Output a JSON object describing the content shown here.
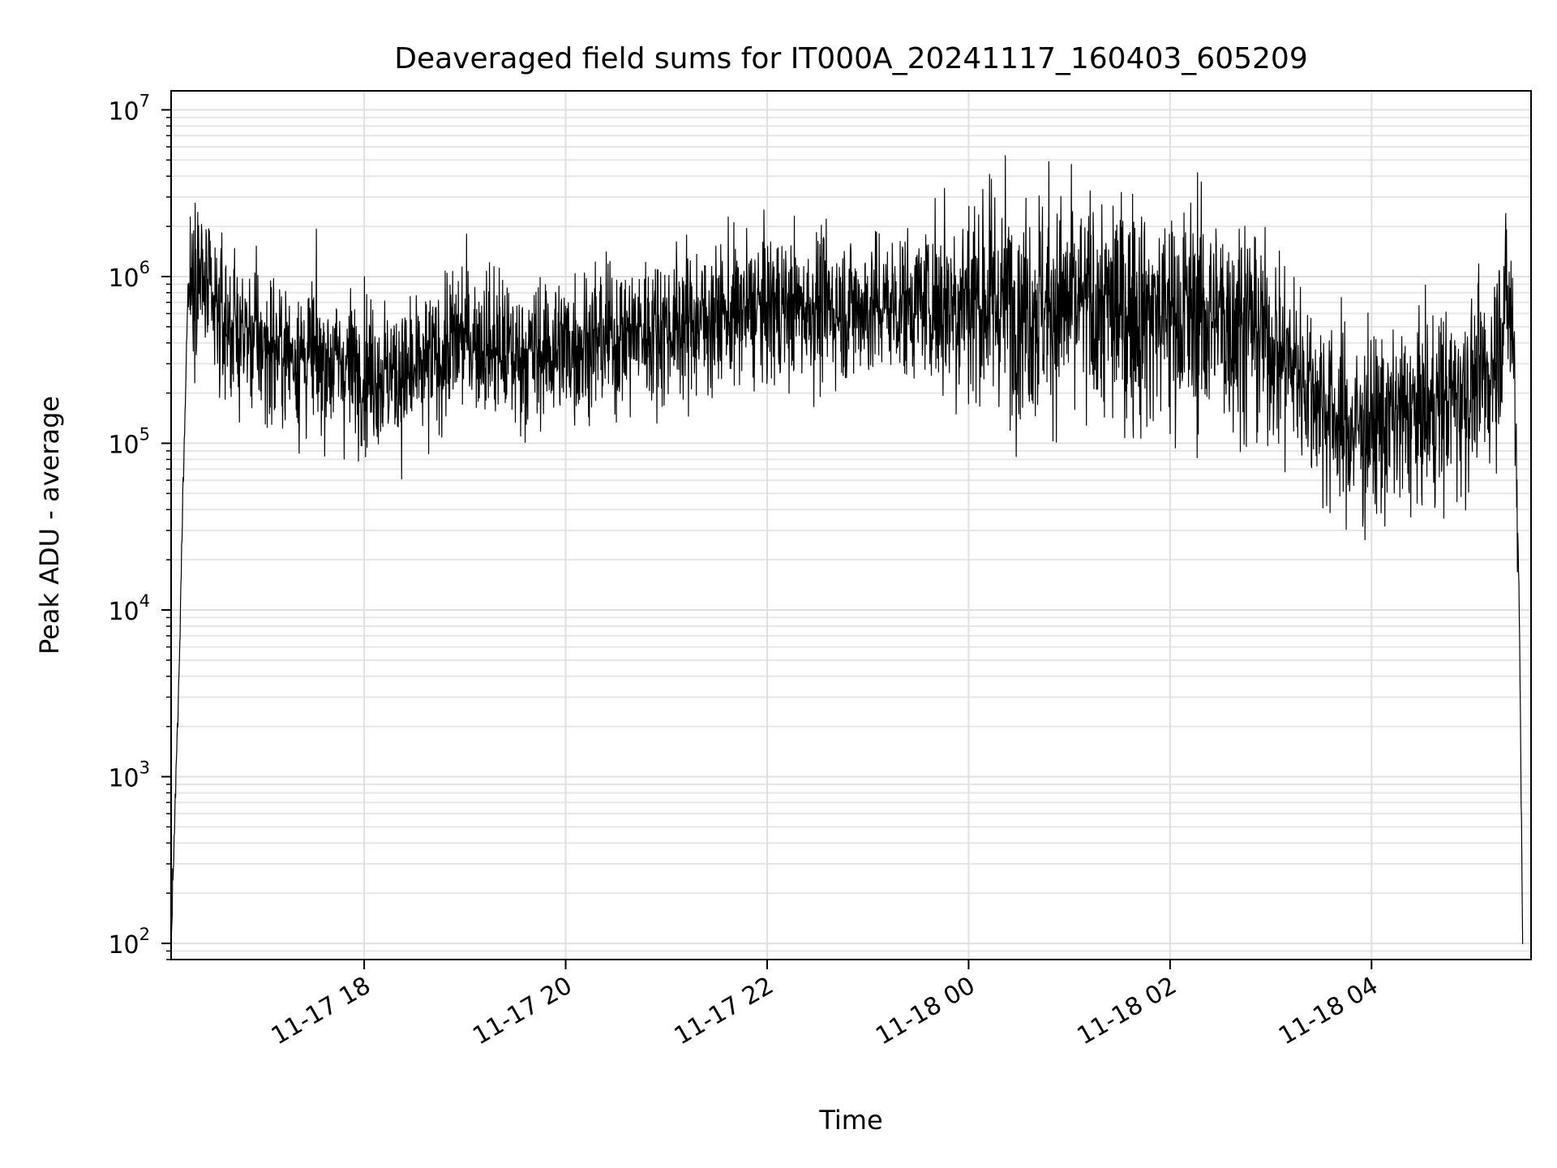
{
  "chart_data": {
    "type": "line",
    "title": "Deaveraged field sums for IT000A_20241117_160403_605209",
    "xlabel": "Time",
    "ylabel": "Peak ADU - average",
    "yscale": "log",
    "ylim": [
      80,
      13000000
    ],
    "xlim": [
      "2024-11-17 16:05",
      "2024-11-18 05:35"
    ],
    "grid": true,
    "line_color": "#000000",
    "x_ticks": [
      {
        "time": "2024-11-17 18:00",
        "label": "11-17 18"
      },
      {
        "time": "2024-11-17 20:00",
        "label": "11-17 20"
      },
      {
        "time": "2024-11-17 22:00",
        "label": "11-17 22"
      },
      {
        "time": "2024-11-18 00:00",
        "label": "11-18 00"
      },
      {
        "time": "2024-11-18 02:00",
        "label": "11-18 02"
      },
      {
        "time": "2024-11-18 04:00",
        "label": "11-18 04"
      }
    ],
    "y_ticks": [
      {
        "value": 100,
        "base": "10",
        "exp": "2"
      },
      {
        "value": 1000,
        "base": "10",
        "exp": "3"
      },
      {
        "value": 10000,
        "base": "10",
        "exp": "4"
      },
      {
        "value": 100000,
        "base": "10",
        "exp": "5"
      },
      {
        "value": 1000000,
        "base": "10",
        "exp": "6"
      },
      {
        "value": 10000000,
        "base": "10",
        "exp": "7"
      }
    ],
    "series": [
      {
        "envelope": [
          {
            "time": "2024-11-17 16:05",
            "value": 100
          },
          {
            "time": "2024-11-17 16:10",
            "value": 5000
          },
          {
            "time": "2024-11-17 16:12",
            "value": 50000
          },
          {
            "time": "2024-11-17 16:15",
            "value": 800000
          },
          {
            "time": "2024-11-17 16:20",
            "value": 1200000
          },
          {
            "time": "2024-11-17 16:30",
            "value": 600000
          },
          {
            "time": "2024-11-17 17:00",
            "value": 380000
          },
          {
            "time": "2024-11-17 18:00",
            "value": 280000
          },
          {
            "time": "2024-11-17 18:30",
            "value": 250000
          },
          {
            "time": "2024-11-17 19:00",
            "value": 450000
          },
          {
            "time": "2024-11-17 19:30",
            "value": 330000
          },
          {
            "time": "2024-11-17 20:00",
            "value": 380000
          },
          {
            "time": "2024-11-17 21:00",
            "value": 500000
          },
          {
            "time": "2024-11-17 22:00",
            "value": 650000
          },
          {
            "time": "2024-11-17 23:00",
            "value": 650000
          },
          {
            "time": "2024-11-18 00:00",
            "value": 750000
          },
          {
            "time": "2024-11-18 01:00",
            "value": 650000
          },
          {
            "time": "2024-11-18 02:00",
            "value": 600000
          },
          {
            "time": "2024-11-18 02:45",
            "value": 550000
          },
          {
            "time": "2024-11-18 03:15",
            "value": 280000
          },
          {
            "time": "2024-11-18 03:45",
            "value": 120000
          },
          {
            "time": "2024-11-18 04:30",
            "value": 150000
          },
          {
            "time": "2024-11-18 05:10",
            "value": 250000
          },
          {
            "time": "2024-11-18 05:20",
            "value": 700000
          },
          {
            "time": "2024-11-18 05:25",
            "value": 400000
          },
          {
            "time": "2024-11-18 05:28",
            "value": 10000
          },
          {
            "time": "2024-11-18 05:30",
            "value": 100
          }
        ]
      }
    ]
  }
}
